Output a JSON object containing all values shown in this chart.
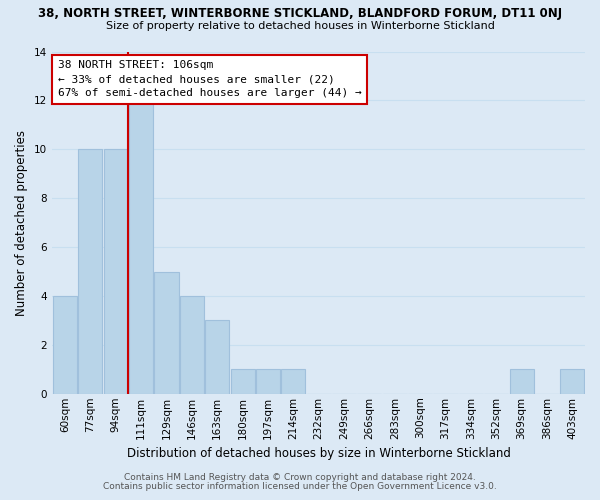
{
  "title_line1": "38, NORTH STREET, WINTERBORNE STICKLAND, BLANDFORD FORUM, DT11 0NJ",
  "title_line2": "Size of property relative to detached houses in Winterborne Stickland",
  "xlabel": "Distribution of detached houses by size in Winterborne Stickland",
  "ylabel": "Number of detached properties",
  "footer_line1": "Contains HM Land Registry data © Crown copyright and database right 2024.",
  "footer_line2": "Contains public sector information licensed under the Open Government Licence v3.0.",
  "bar_labels": [
    "60sqm",
    "77sqm",
    "94sqm",
    "111sqm",
    "129sqm",
    "146sqm",
    "163sqm",
    "180sqm",
    "197sqm",
    "214sqm",
    "232sqm",
    "249sqm",
    "266sqm",
    "283sqm",
    "300sqm",
    "317sqm",
    "334sqm",
    "352sqm",
    "369sqm",
    "386sqm",
    "403sqm"
  ],
  "bar_values": [
    4,
    10,
    10,
    12,
    5,
    4,
    3,
    1,
    1,
    1,
    0,
    0,
    0,
    0,
    0,
    0,
    0,
    0,
    1,
    0,
    1
  ],
  "bar_color": "#b8d4e8",
  "bar_edge_color": "#a0c0dc",
  "grid_color": "#c8dff0",
  "bg_color": "#dce9f5",
  "ylim": [
    0,
    14
  ],
  "yticks": [
    0,
    2,
    4,
    6,
    8,
    10,
    12,
    14
  ],
  "annotation_line1": "38 NORTH STREET: 106sqm",
  "annotation_line2": "← 33% of detached houses are smaller (22)",
  "annotation_line3": "67% of semi-detached houses are larger (44) →",
  "vline_x_idx": 2.5,
  "vline_color": "#cc0000",
  "annotation_box_color": "#ffffff",
  "annotation_box_edge": "#cc0000",
  "title_fontsize": 8.5,
  "subtitle_fontsize": 8.0,
  "ylabel_fontsize": 8.5,
  "xlabel_fontsize": 8.5,
  "tick_fontsize": 7.5,
  "ann_fontsize": 8.0,
  "footer_fontsize": 6.5
}
